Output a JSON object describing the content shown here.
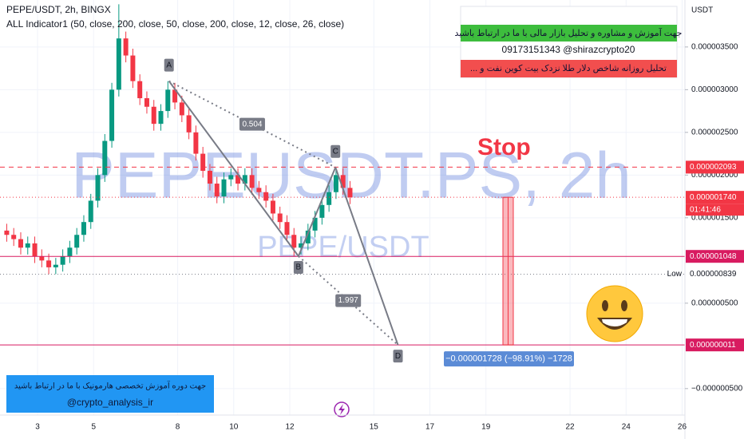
{
  "chart_data": {
    "type": "candlestick",
    "title": "PEPE/USDT, 2h, BINGX",
    "indicator": "ALL Indicator1 (50, close, 200, close, 50, close, 200, close, 12, close, 26, close)",
    "watermark": "PEPEUSDT.PS, 2h",
    "watermark_sub": "PEPE/USDT",
    "currency": "USDT",
    "stop": "Stop",
    "up_color": "#089981",
    "down_color": "#f23645",
    "xlim": [
      1.66,
      26.1
    ],
    "xticks": [
      3,
      5,
      8,
      10,
      12,
      15,
      17,
      19,
      22,
      24,
      26
    ],
    "ylim": [
      -8.1e-07,
      4.05e-06
    ],
    "yticks": [
      {
        "value": 3.5e-06,
        "label": "0.000003500"
      },
      {
        "value": 3e-06,
        "label": "0.000003000"
      },
      {
        "value": 2.5e-06,
        "label": "0.000002500"
      },
      {
        "value": 2e-06,
        "label": "0.000002000"
      },
      {
        "value": 1.5e-06,
        "label": "0.000001500"
      },
      {
        "value": 5e-07,
        "label": "0.000000500"
      },
      {
        "value": -5e-07,
        "label": "−0.000000500"
      }
    ],
    "grid": true,
    "x": [
      1.9,
      2.15,
      2.4,
      2.65,
      2.9,
      3.15,
      3.4,
      3.65,
      3.9,
      4.15,
      4.4,
      4.65,
      4.9,
      5.15,
      5.4,
      5.65,
      5.9,
      6.15,
      6.4,
      6.65,
      6.9,
      7.15,
      7.4,
      7.65,
      7.9,
      8.15,
      8.4,
      8.65,
      8.9,
      9.15,
      9.4,
      9.65,
      9.9,
      10.15,
      10.4,
      10.65,
      10.9,
      11.15,
      11.4,
      11.65,
      11.9,
      12.15,
      12.4,
      12.65,
      12.9,
      13.15,
      13.4,
      13.65,
      13.9,
      14.15
    ],
    "open": [
      1.35e-06,
      1.3e-06,
      1.25e-06,
      1.15e-06,
      1.2e-06,
      1.05e-06,
      1e-06,
      9.2e-07,
      9.5e-07,
      1.05e-06,
      1.15e-06,
      1.3e-06,
      1.45e-06,
      1.7e-06,
      2e-06,
      2.4e-06,
      3e-06,
      3.6e-06,
      3.4e-06,
      3.1e-06,
      2.9e-06,
      2.8e-06,
      2.6e-06,
      2.75e-06,
      3e-06,
      2.85e-06,
      2.7e-06,
      2.5e-06,
      2.25e-06,
      2.05e-06,
      1.9e-06,
      1.75e-06,
      1.95e-06,
      2e-06,
      1.9e-06,
      2e-06,
      1.85e-06,
      1.8e-06,
      1.7e-06,
      1.55e-06,
      1.45e-06,
      1.3e-06,
      1.15e-06,
      1.2e-06,
      1.35e-06,
      1.5e-06,
      1.65e-06,
      1.8e-06,
      2e-06,
      1.85e-06
    ],
    "high": [
      1.43e-06,
      1.38e-06,
      1.33e-06,
      1.28e-06,
      1.28e-06,
      1.13e-06,
      1.08e-06,
      1.03e-06,
      1.13e-06,
      1.23e-06,
      1.38e-06,
      1.53e-06,
      1.78e-06,
      2.08e-06,
      2.48e-06,
      3.08e-06,
      4e-06,
      3.68e-06,
      3.48e-06,
      3.18e-06,
      2.98e-06,
      2.88e-06,
      2.83e-06,
      3.1e-06,
      3.08e-06,
      2.93e-06,
      2.78e-06,
      2.58e-06,
      2.33e-06,
      2.13e-06,
      1.98e-06,
      2.03e-06,
      2.08e-06,
      2.08e-06,
      2.08e-06,
      2.08e-06,
      1.93e-06,
      1.88e-06,
      1.78e-06,
      1.63e-06,
      1.53e-06,
      1.38e-06,
      1.28e-06,
      1.43e-06,
      1.58e-06,
      1.73e-06,
      1.88e-06,
      2.09e-06,
      2.08e-06,
      1.93e-06
    ],
    "low": [
      1.22e-06,
      1.17e-06,
      1.07e-06,
      1.07e-06,
      9.7e-07,
      9.2e-07,
      8.4e-07,
      8.4e-07,
      8.7e-07,
      9.7e-07,
      1.07e-06,
      1.22e-06,
      1.37e-06,
      1.62e-06,
      1.92e-06,
      2.32e-06,
      2.92e-06,
      3.32e-06,
      3.02e-06,
      2.82e-06,
      2.72e-06,
      2.52e-06,
      2.52e-06,
      2.67e-06,
      2.77e-06,
      2.62e-06,
      2.42e-06,
      2.17e-06,
      1.97e-06,
      1.82e-06,
      1.67e-06,
      1.67e-06,
      1.87e-06,
      1.82e-06,
      1.82e-06,
      1.77e-06,
      1.72e-06,
      1.62e-06,
      1.47e-06,
      1.37e-06,
      1.22e-06,
      1.05e-06,
      1.07e-06,
      1.12e-06,
      1.27e-06,
      1.42e-06,
      1.57e-06,
      1.72e-06,
      1.77e-06,
      1.66e-06
    ],
    "close": [
      1.3e-06,
      1.25e-06,
      1.15e-06,
      1.2e-06,
      1.05e-06,
      1e-06,
      9.2e-07,
      9.5e-07,
      1.05e-06,
      1.15e-06,
      1.3e-06,
      1.45e-06,
      1.7e-06,
      2e-06,
      2.4e-06,
      3e-06,
      3.6e-06,
      3.4e-06,
      3.1e-06,
      2.9e-06,
      2.8e-06,
      2.6e-06,
      2.75e-06,
      3e-06,
      2.85e-06,
      2.7e-06,
      2.5e-06,
      2.25e-06,
      2.05e-06,
      1.9e-06,
      1.75e-06,
      1.95e-06,
      2e-06,
      1.9e-06,
      2e-06,
      1.85e-06,
      1.8e-06,
      1.7e-06,
      1.55e-06,
      1.45e-06,
      1.3e-06,
      1.15e-06,
      1.2e-06,
      1.35e-06,
      1.5e-06,
      1.65e-06,
      1.8e-06,
      2e-06,
      1.85e-06,
      1.74e-06
    ],
    "pattern": [
      {
        "label": "A",
        "x": 7.69,
        "y": 3.1e-06
      },
      {
        "label": "B",
        "x": 12.31,
        "y": 1.05e-06
      },
      {
        "label": "C",
        "x": 13.63,
        "y": 2.09e-06
      },
      {
        "label": "D",
        "x": 15.86,
        "y": 1.1e-08
      }
    ],
    "ratios": [
      "0.504",
      "1.997"
    ],
    "price_lines": [
      {
        "value": 2.093e-06,
        "label": "0.000002093",
        "color": "#f23645",
        "dash": "6,5",
        "boxed": true
      },
      {
        "value": 1.74e-06,
        "label": "0.000001740",
        "color": "#f23645",
        "dash": "1,3",
        "boxed": true,
        "countdown": "01:41:46"
      },
      {
        "value": 1.048e-06,
        "label": "0.000001048",
        "color": "#d81b60",
        "dash": "",
        "boxed": true
      },
      {
        "value": 8.39e-07,
        "label": "0.000000839",
        "color": "#787b86",
        "dash": "1,3",
        "boxed": false,
        "tag": "Low"
      },
      {
        "value": 1.1e-08,
        "label": "0.000000011",
        "color": "#d81b60",
        "dash": "",
        "boxed": true
      }
    ],
    "measure": "−0.000001728 (−98.91%) −1728",
    "info": [
      "جهت آموزش و مشاوره و تحلیل بازار مالی با ما در ارتباط باشید",
      "09173151343  @shirazcrypto20",
      "تحلیل روزانه شاخص دلار طلا نزدک بیت کوین نفت و ..."
    ],
    "promo": [
      "جهت دوره آموزش تخصصی هارمونیک با ما در ارتباط باشید",
      "@crypto_analysis_ir"
    ]
  }
}
